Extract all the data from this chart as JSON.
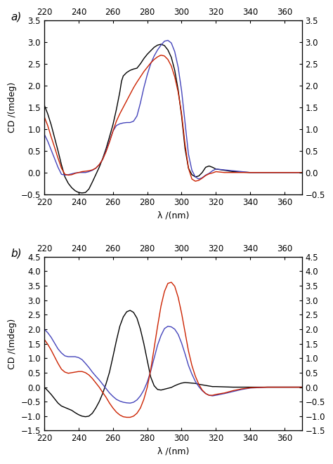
{
  "panel_a": {
    "ylabel": "CD /(mdeg)",
    "xlabel": "λ /(nm)",
    "xlim": [
      220,
      370
    ],
    "ylim": [
      -0.5,
      3.5
    ],
    "yticks": [
      -0.5,
      0.0,
      0.5,
      1.0,
      1.5,
      2.0,
      2.5,
      3.0,
      3.5
    ],
    "xticks": [
      220,
      240,
      260,
      280,
      300,
      320,
      340,
      360
    ],
    "black": {
      "x": [
        220,
        222,
        224,
        226,
        228,
        230,
        232,
        234,
        236,
        238,
        240,
        242,
        244,
        246,
        248,
        250,
        252,
        254,
        256,
        258,
        260,
        262,
        264,
        265,
        266,
        268,
        270,
        272,
        274,
        276,
        278,
        280,
        282,
        284,
        286,
        288,
        290,
        292,
        294,
        296,
        298,
        300,
        302,
        304,
        306,
        308,
        310,
        312,
        314,
        316,
        318,
        320,
        325,
        330,
        335,
        340,
        345,
        350,
        360,
        370
      ],
      "y": [
        1.55,
        1.35,
        1.1,
        0.8,
        0.5,
        0.18,
        -0.1,
        -0.25,
        -0.35,
        -0.42,
        -0.46,
        -0.47,
        -0.46,
        -0.38,
        -0.22,
        -0.05,
        0.12,
        0.32,
        0.55,
        0.82,
        1.1,
        1.45,
        1.85,
        2.1,
        2.22,
        2.3,
        2.35,
        2.38,
        2.4,
        2.5,
        2.62,
        2.72,
        2.8,
        2.88,
        2.93,
        2.95,
        2.92,
        2.82,
        2.65,
        2.35,
        1.9,
        1.3,
        0.55,
        0.1,
        -0.05,
        -0.1,
        -0.08,
        0.0,
        0.12,
        0.15,
        0.12,
        0.08,
        0.05,
        0.02,
        0.01,
        0.0,
        0.0,
        0.0,
        0.0,
        0.0
      ]
    },
    "blue": {
      "x": [
        220,
        222,
        224,
        226,
        228,
        230,
        232,
        234,
        236,
        238,
        240,
        242,
        244,
        246,
        248,
        250,
        252,
        254,
        256,
        258,
        260,
        262,
        264,
        266,
        268,
        270,
        272,
        274,
        276,
        278,
        280,
        282,
        284,
        286,
        288,
        290,
        292,
        294,
        296,
        298,
        300,
        302,
        304,
        306,
        308,
        310,
        312,
        314,
        316,
        318,
        320,
        325,
        330,
        335,
        340,
        345,
        350,
        360,
        370
      ],
      "y": [
        0.88,
        0.72,
        0.52,
        0.32,
        0.12,
        -0.04,
        -0.06,
        -0.05,
        -0.03,
        -0.01,
        0.0,
        0.0,
        0.0,
        0.02,
        0.05,
        0.1,
        0.18,
        0.3,
        0.5,
        0.72,
        0.95,
        1.08,
        1.12,
        1.14,
        1.15,
        1.15,
        1.18,
        1.3,
        1.6,
        1.95,
        2.25,
        2.5,
        2.68,
        2.82,
        2.93,
        3.02,
        3.04,
        2.98,
        2.78,
        2.42,
        1.88,
        1.15,
        0.42,
        0.05,
        -0.1,
        -0.15,
        -0.12,
        -0.06,
        -0.02,
        0.04,
        0.08,
        0.06,
        0.04,
        0.02,
        0.0,
        0.0,
        0.0,
        0.0,
        0.0
      ]
    },
    "red": {
      "x": [
        220,
        222,
        224,
        226,
        228,
        230,
        232,
        234,
        236,
        238,
        240,
        242,
        244,
        246,
        248,
        250,
        252,
        254,
        256,
        258,
        260,
        262,
        264,
        266,
        268,
        270,
        272,
        274,
        276,
        278,
        280,
        282,
        284,
        286,
        288,
        290,
        292,
        294,
        296,
        298,
        300,
        302,
        304,
        306,
        308,
        310,
        312,
        314,
        316,
        318,
        320,
        325,
        330,
        335,
        340,
        345,
        350,
        360,
        370
      ],
      "y": [
        1.28,
        1.08,
        0.82,
        0.58,
        0.33,
        0.1,
        -0.04,
        -0.06,
        -0.05,
        -0.02,
        0.0,
        0.02,
        0.03,
        0.04,
        0.06,
        0.1,
        0.18,
        0.3,
        0.48,
        0.7,
        0.95,
        1.18,
        1.35,
        1.5,
        1.65,
        1.8,
        1.95,
        2.08,
        2.2,
        2.32,
        2.42,
        2.52,
        2.6,
        2.66,
        2.7,
        2.68,
        2.6,
        2.45,
        2.2,
        1.85,
        1.35,
        0.65,
        0.1,
        -0.15,
        -0.2,
        -0.18,
        -0.13,
        -0.07,
        -0.03,
        -0.01,
        0.02,
        0.0,
        0.0,
        0.0,
        0.0,
        0.0,
        0.0,
        0.0,
        0.0
      ]
    }
  },
  "panel_b": {
    "ylabel": "CD /(mdeg)",
    "xlabel": "λ /(nm)",
    "xlim": [
      220,
      370
    ],
    "ylim": [
      -1.5,
      4.5
    ],
    "yticks": [
      -1.5,
      -1.0,
      -0.5,
      0.0,
      0.5,
      1.0,
      1.5,
      2.0,
      2.5,
      3.0,
      3.5,
      4.0,
      4.5
    ],
    "xticks": [
      220,
      240,
      260,
      280,
      300,
      320,
      340,
      360
    ],
    "black": {
      "x": [
        220,
        222,
        224,
        226,
        228,
        230,
        232,
        234,
        236,
        238,
        240,
        242,
        244,
        246,
        248,
        250,
        252,
        254,
        256,
        258,
        260,
        262,
        264,
        266,
        268,
        270,
        272,
        274,
        276,
        278,
        280,
        282,
        284,
        286,
        288,
        290,
        292,
        294,
        296,
        298,
        300,
        302,
        304,
        306,
        308,
        310,
        312,
        314,
        316,
        318,
        320,
        325,
        330,
        335,
        340,
        350,
        360,
        370
      ],
      "y": [
        0.0,
        -0.12,
        -0.25,
        -0.4,
        -0.55,
        -0.65,
        -0.7,
        -0.75,
        -0.8,
        -0.88,
        -0.95,
        -1.0,
        -1.02,
        -1.0,
        -0.9,
        -0.72,
        -0.5,
        -0.22,
        0.12,
        0.52,
        1.05,
        1.6,
        2.1,
        2.42,
        2.6,
        2.65,
        2.58,
        2.38,
        2.0,
        1.5,
        0.92,
        0.35,
        0.05,
        -0.08,
        -0.1,
        -0.07,
        -0.04,
        -0.01,
        0.05,
        0.1,
        0.14,
        0.16,
        0.15,
        0.14,
        0.13,
        0.1,
        0.08,
        0.06,
        0.04,
        0.02,
        0.02,
        0.01,
        0.0,
        0.0,
        0.0,
        0.0,
        0.0,
        0.0
      ]
    },
    "blue": {
      "x": [
        220,
        222,
        224,
        226,
        228,
        230,
        232,
        234,
        236,
        238,
        240,
        242,
        244,
        246,
        248,
        250,
        252,
        254,
        256,
        258,
        260,
        262,
        264,
        266,
        268,
        270,
        272,
        274,
        276,
        278,
        280,
        282,
        284,
        286,
        288,
        290,
        292,
        294,
        296,
        298,
        300,
        302,
        304,
        306,
        308,
        310,
        312,
        314,
        316,
        318,
        320,
        325,
        330,
        335,
        340,
        350,
        360,
        370
      ],
      "y": [
        2.0,
        1.88,
        1.72,
        1.52,
        1.32,
        1.18,
        1.08,
        1.05,
        1.05,
        1.05,
        1.02,
        0.95,
        0.82,
        0.68,
        0.52,
        0.38,
        0.25,
        0.1,
        -0.05,
        -0.2,
        -0.32,
        -0.42,
        -0.48,
        -0.52,
        -0.54,
        -0.55,
        -0.52,
        -0.44,
        -0.3,
        -0.1,
        0.18,
        0.55,
        1.0,
        1.45,
        1.78,
        2.02,
        2.1,
        2.08,
        2.0,
        1.82,
        1.52,
        1.15,
        0.75,
        0.45,
        0.2,
        0.02,
        -0.12,
        -0.22,
        -0.28,
        -0.3,
        -0.28,
        -0.22,
        -0.15,
        -0.08,
        -0.03,
        0.0,
        0.0,
        0.0
      ]
    },
    "red": {
      "x": [
        220,
        222,
        224,
        226,
        228,
        230,
        232,
        234,
        236,
        238,
        240,
        242,
        244,
        246,
        248,
        250,
        252,
        254,
        256,
        258,
        260,
        262,
        264,
        266,
        268,
        270,
        272,
        274,
        276,
        278,
        280,
        282,
        284,
        286,
        288,
        290,
        292,
        294,
        296,
        298,
        300,
        302,
        304,
        306,
        308,
        310,
        312,
        314,
        316,
        318,
        320,
        325,
        330,
        335,
        340,
        350,
        360,
        370
      ],
      "y": [
        1.65,
        1.48,
        1.28,
        1.05,
        0.82,
        0.62,
        0.52,
        0.48,
        0.5,
        0.52,
        0.54,
        0.54,
        0.5,
        0.42,
        0.3,
        0.15,
        0.0,
        -0.18,
        -0.35,
        -0.55,
        -0.72,
        -0.86,
        -0.96,
        -1.02,
        -1.04,
        -1.04,
        -1.0,
        -0.9,
        -0.72,
        -0.42,
        0.0,
        0.6,
        1.35,
        2.1,
        2.8,
        3.3,
        3.58,
        3.62,
        3.48,
        3.1,
        2.55,
        1.9,
        1.25,
        0.75,
        0.38,
        0.1,
        -0.1,
        -0.22,
        -0.28,
        -0.28,
        -0.25,
        -0.2,
        -0.12,
        -0.06,
        -0.02,
        0.0,
        0.0,
        0.0
      ]
    }
  },
  "colors": {
    "black": "#000000",
    "blue": "#4444bb",
    "red": "#cc2200"
  },
  "linewidth": 1.0,
  "label_fontsize": 9,
  "tick_fontsize": 8.5,
  "panel_label_fontsize": 11
}
